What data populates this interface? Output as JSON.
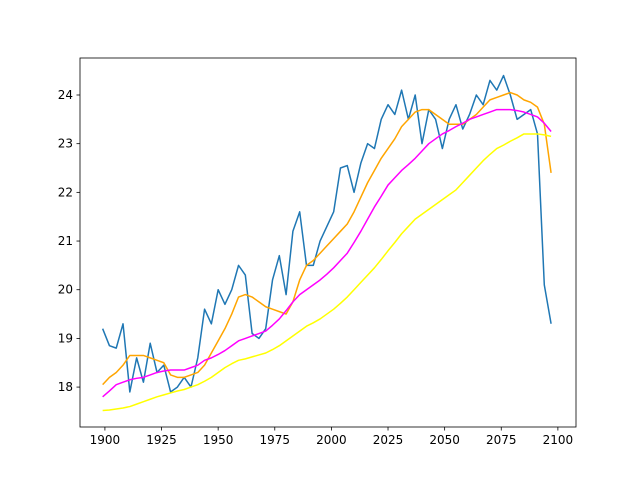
{
  "chart_data": {
    "type": "line",
    "x": [
      1899,
      1902,
      1905,
      1908,
      1911,
      1914,
      1917,
      1920,
      1923,
      1926,
      1929,
      1932,
      1935,
      1938,
      1941,
      1944,
      1947,
      1950,
      1953,
      1956,
      1959,
      1962,
      1965,
      1968,
      1971,
      1974,
      1977,
      1980,
      1983,
      1986,
      1989,
      1992,
      1995,
      1998,
      2001,
      2004,
      2007,
      2010,
      2013,
      2016,
      2019,
      2022,
      2025,
      2028,
      2031,
      2034,
      2037,
      2040,
      2043,
      2046,
      2049,
      2052,
      2055,
      2058,
      2061,
      2064,
      2067,
      2070,
      2073,
      2076,
      2079,
      2082,
      2085,
      2088,
      2091,
      2094,
      2097
    ],
    "series": [
      {
        "color": "#1f77b4",
        "values": [
          19.2,
          18.85,
          18.8,
          19.3,
          17.9,
          18.6,
          18.1,
          18.9,
          18.3,
          18.45,
          17.9,
          18.0,
          18.2,
          18.0,
          18.6,
          19.6,
          19.3,
          20.0,
          19.7,
          20.0,
          20.5,
          20.3,
          19.1,
          19.0,
          19.2,
          20.2,
          20.7,
          19.9,
          21.2,
          21.6,
          20.5,
          20.5,
          21.0,
          21.3,
          21.6,
          22.5,
          22.55,
          22.0,
          22.6,
          23.0,
          22.9,
          23.5,
          23.8,
          23.6,
          24.1,
          23.5,
          24.0,
          23.0,
          23.7,
          23.5,
          22.9,
          23.5,
          23.8,
          23.3,
          23.6,
          24.0,
          23.8,
          24.3,
          24.1,
          24.4,
          24.0,
          23.5,
          23.6,
          23.7,
          23.2,
          20.1,
          19.3
        ]
      },
      {
        "color": "#ffa500",
        "values": [
          18.05,
          18.2,
          18.3,
          18.45,
          18.65,
          18.65,
          18.65,
          18.6,
          18.55,
          18.5,
          18.25,
          18.2,
          18.2,
          18.25,
          18.3,
          18.45,
          18.7,
          18.95,
          19.2,
          19.5,
          19.85,
          19.9,
          19.85,
          19.75,
          19.65,
          19.6,
          19.55,
          19.5,
          19.75,
          20.2,
          20.5,
          20.6,
          20.75,
          20.9,
          21.05,
          21.2,
          21.35,
          21.6,
          21.9,
          22.2,
          22.45,
          22.7,
          22.9,
          23.1,
          23.35,
          23.5,
          23.65,
          23.7,
          23.7,
          23.6,
          23.5,
          23.4,
          23.4,
          23.4,
          23.5,
          23.6,
          23.75,
          23.9,
          23.95,
          24.0,
          24.05,
          24.0,
          23.9,
          23.85,
          23.75,
          23.4,
          22.4
        ]
      },
      {
        "color": "#ff00ff",
        "values": [
          17.8,
          17.92,
          18.05,
          18.1,
          18.15,
          18.18,
          18.2,
          18.25,
          18.3,
          18.33,
          18.35,
          18.35,
          18.35,
          18.4,
          18.45,
          18.55,
          18.6,
          18.67,
          18.75,
          18.85,
          18.95,
          19.0,
          19.05,
          19.1,
          19.15,
          19.27,
          19.4,
          19.57,
          19.75,
          19.9,
          20.0,
          20.1,
          20.2,
          20.32,
          20.45,
          20.6,
          20.75,
          20.97,
          21.2,
          21.45,
          21.7,
          21.92,
          22.15,
          22.3,
          22.45,
          22.57,
          22.7,
          22.85,
          23.0,
          23.1,
          23.2,
          23.27,
          23.35,
          23.42,
          23.5,
          23.55,
          23.6,
          23.65,
          23.7,
          23.7,
          23.7,
          23.68,
          23.65,
          23.6,
          23.55,
          23.42,
          23.25
        ]
      },
      {
        "color": "#ffff00",
        "values": [
          17.52,
          17.53,
          17.55,
          17.57,
          17.6,
          17.65,
          17.7,
          17.75,
          17.8,
          17.84,
          17.88,
          17.92,
          17.95,
          18.0,
          18.05,
          18.12,
          18.2,
          18.3,
          18.4,
          18.48,
          18.55,
          18.58,
          18.62,
          18.66,
          18.7,
          18.77,
          18.85,
          18.95,
          19.05,
          19.15,
          19.25,
          19.32,
          19.4,
          19.5,
          19.6,
          19.72,
          19.85,
          20.0,
          20.15,
          20.3,
          20.45,
          20.62,
          20.8,
          20.97,
          21.15,
          21.3,
          21.45,
          21.55,
          21.65,
          21.75,
          21.85,
          21.95,
          22.05,
          22.2,
          22.35,
          22.5,
          22.65,
          22.78,
          22.9,
          22.97,
          23.05,
          23.12,
          23.2,
          23.2,
          23.2,
          23.18,
          23.15
        ]
      }
    ],
    "xlim": [
      1889,
      2108
    ],
    "xticks": [
      1900,
      1925,
      1950,
      1975,
      2000,
      2025,
      2050,
      2075,
      2100
    ],
    "ylim": [
      17.18,
      24.76
    ],
    "yticks": [
      18,
      19,
      20,
      21,
      22,
      23,
      24
    ]
  }
}
